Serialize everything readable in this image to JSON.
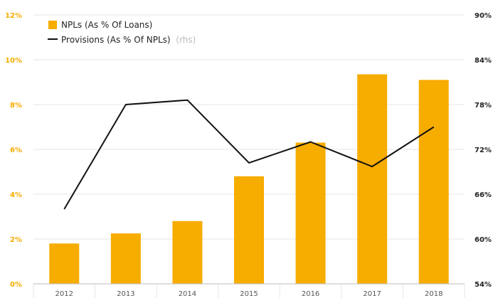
{
  "colors": {
    "bar": "#f7ac00",
    "line": "#111111",
    "left_axis_text": "#f7ac00",
    "grid": "#e6e6e6",
    "axis": "#bbbbbb"
  },
  "chart_data": {
    "type": "bar",
    "categories": [
      "2012",
      "2013",
      "2014",
      "2015",
      "2016",
      "2017",
      "2018"
    ],
    "series": [
      {
        "name": "NPLs (As % Of Loans)",
        "type": "bar",
        "axis": "left",
        "values": [
          1.8,
          2.25,
          2.8,
          4.8,
          6.3,
          9.35,
          9.1
        ]
      },
      {
        "name": "Provisions (As % Of NPLs)",
        "name_suffix": "(rhs)",
        "type": "line",
        "axis": "right",
        "values": [
          64.0,
          78.0,
          78.6,
          70.2,
          73.0,
          69.7,
          75.0
        ]
      }
    ],
    "y_left": {
      "min": 0,
      "max": 12,
      "ticks": [
        0,
        2,
        4,
        6,
        8,
        10,
        12
      ],
      "tick_labels": [
        "0%",
        "2%",
        "4%",
        "6%",
        "8%",
        "10%",
        "12%"
      ]
    },
    "y_right": {
      "min": 54,
      "max": 90,
      "ticks": [
        54,
        60,
        66,
        72,
        78,
        84,
        90
      ],
      "tick_labels": [
        "54%",
        "60%",
        "66%",
        "72%",
        "78%",
        "84%",
        "90%"
      ]
    },
    "grid": true,
    "legend_position": "top-left"
  }
}
